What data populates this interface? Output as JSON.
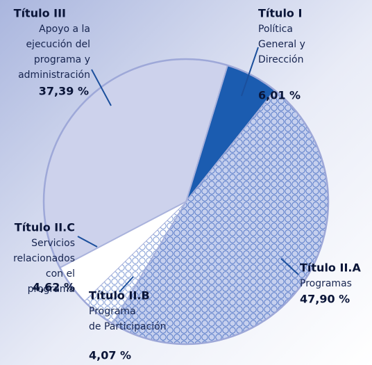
{
  "chart_data": {
    "type": "pie",
    "categories": [
      "Título I",
      "Título II.A",
      "Título II.B",
      "Título II.C",
      "Título III"
    ],
    "descriptions": [
      [
        "Política",
        "General y",
        "Dirección"
      ],
      [
        "Programas"
      ],
      [
        "Programa",
        "de Participación"
      ],
      [
        "Servicios",
        "relacionados",
        "con el",
        "programa"
      ],
      [
        "Apoyo a la",
        "ejecución del",
        "programa y",
        "administración"
      ]
    ],
    "values": [
      6.01,
      47.9,
      4.07,
      4.62,
      37.39
    ],
    "value_labels": [
      "6,01 %",
      "47,90 %",
      "4,07 %",
      "4,62 %",
      "37,39 %"
    ],
    "colors": [
      "#1b5cb0",
      "#c6d0ee",
      "#ffffff",
      "#2a5fb0",
      "#cdd2ec"
    ]
  }
}
